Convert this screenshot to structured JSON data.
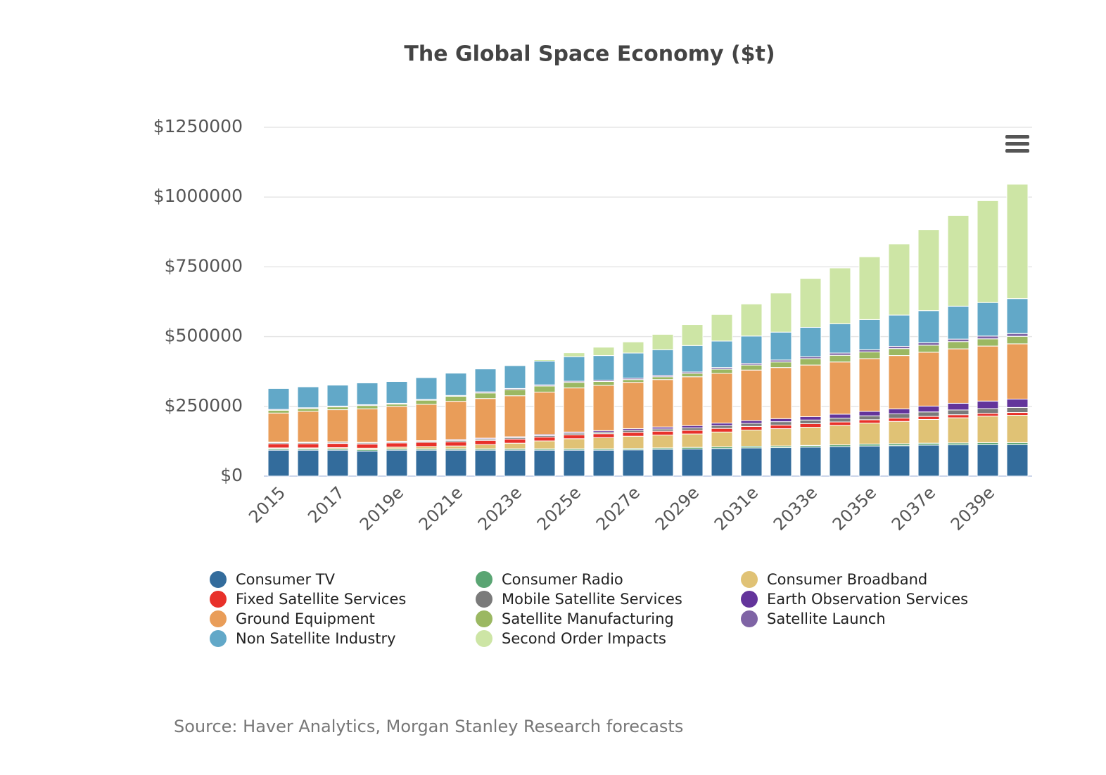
{
  "chart_data": {
    "type": "stacked-bar",
    "title": "The Global Space Economy ($t)",
    "source": "Source: Haver Analytics, Morgan Stanley Research forecasts",
    "categories": [
      "2015",
      null,
      "2017",
      null,
      "2019e",
      null,
      "2021e",
      null,
      "2023e",
      null,
      "2025e",
      null,
      "2027e",
      null,
      "2029e",
      null,
      "2031e",
      null,
      "2033e",
      null,
      "2035e",
      null,
      "2037e",
      null,
      "2039e",
      null
    ],
    "ylim": [
      0,
      1250000
    ],
    "yticks": [
      {
        "value": 0,
        "label": "$0"
      },
      {
        "value": 250000,
        "label": "$250000"
      },
      {
        "value": 500000,
        "label": "$500000"
      },
      {
        "value": 750000,
        "label": "$750000"
      },
      {
        "value": 1000000,
        "label": "$1000000"
      },
      {
        "value": 1250000,
        "label": "$1250000"
      }
    ],
    "grid": true,
    "legend": "bottom",
    "series": [
      {
        "name": "Consumer TV",
        "color": "#336c9c",
        "values": [
          93000,
          93000,
          93000,
          90000,
          93000,
          93000,
          93000,
          93000,
          93000,
          93000,
          93000,
          93000,
          94000,
          96000,
          97000,
          99000,
          101000,
          102000,
          104000,
          106000,
          108000,
          109000,
          111000,
          112000,
          113000,
          113000
        ]
      },
      {
        "name": "Consumer Radio",
        "color": "#5aa573",
        "values": [
          5000,
          5000,
          5000,
          5000,
          5000,
          5000,
          5000,
          5000,
          5000,
          5000,
          5000,
          5000,
          5000,
          5000,
          6000,
          6000,
          6000,
          6000,
          6000,
          6000,
          7000,
          7000,
          7000,
          7000,
          7000,
          7000
        ]
      },
      {
        "name": "Consumer Broadband",
        "color": "#e0c275",
        "values": [
          3000,
          3000,
          4000,
          5000,
          6000,
          8000,
          10000,
          15000,
          20000,
          28000,
          36000,
          40000,
          44000,
          46000,
          48000,
          53000,
          58000,
          62000,
          65000,
          70000,
          75000,
          80000,
          85000,
          90000,
          95000,
          98000
        ]
      },
      {
        "name": "Fixed Satellite Services",
        "color": "#e8312a",
        "values": [
          15000,
          15000,
          15000,
          15000,
          15000,
          15000,
          15000,
          15000,
          15000,
          14000,
          14000,
          14000,
          14000,
          14000,
          13000,
          13000,
          13000,
          13000,
          13000,
          12000,
          12000,
          12000,
          11000,
          11000,
          10000,
          10000
        ]
      },
      {
        "name": "Mobile Satellite Services",
        "color": "#7a7a7a",
        "values": [
          4000,
          4000,
          4000,
          4000,
          4000,
          4000,
          5000,
          5000,
          5000,
          5000,
          6000,
          6000,
          7000,
          8000,
          9000,
          10000,
          11000,
          12000,
          13000,
          14000,
          14000,
          15000,
          16000,
          17000,
          17000,
          18000
        ]
      },
      {
        "name": "Earth Observation Services",
        "color": "#63349b",
        "values": [
          2000,
          2000,
          2000,
          2000,
          2000,
          2000,
          3000,
          3000,
          3000,
          4000,
          4000,
          5000,
          6000,
          7000,
          8000,
          9000,
          10000,
          11000,
          12000,
          14000,
          16000,
          18000,
          21000,
          24000,
          27000,
          30000
        ]
      },
      {
        "name": "Ground Equipment",
        "color": "#e99d59",
        "values": [
          104000,
          110000,
          115000,
          120000,
          125000,
          130000,
          137000,
          142000,
          147000,
          152000,
          158000,
          162000,
          166000,
          170000,
          175000,
          178000,
          181000,
          183000,
          185000,
          187000,
          189000,
          191000,
          193000,
          195000,
          197000,
          198000
        ]
      },
      {
        "name": "Satellite Manufacturing",
        "color": "#9bb862",
        "values": [
          10000,
          10000,
          10000,
          12000,
          8000,
          15000,
          18000,
          20000,
          22000,
          22000,
          20000,
          14000,
          10000,
          10000,
          12000,
          15000,
          18000,
          20000,
          23000,
          24000,
          24000,
          25000,
          25000,
          26000,
          26000,
          27000
        ]
      },
      {
        "name": "Satellite Launch",
        "color": "#7f64a5",
        "values": [
          3000,
          3000,
          3000,
          3000,
          3000,
          3000,
          3000,
          4000,
          4000,
          4000,
          4000,
          5000,
          5000,
          5000,
          5000,
          6000,
          6000,
          7000,
          7000,
          8000,
          8000,
          8000,
          9000,
          9000,
          10000,
          10000
        ]
      },
      {
        "name": "Non Satellite Industry",
        "color": "#62a8c8",
        "values": [
          75000,
          75000,
          75000,
          78000,
          78000,
          78000,
          80000,
          82000,
          82000,
          85000,
          88000,
          88000,
          90000,
          92000,
          95000,
          95000,
          98000,
          100000,
          105000,
          105000,
          108000,
          112000,
          115000,
          118000,
          120000,
          125000
        ]
      },
      {
        "name": "Second Order Impacts",
        "color": "#cde5a5",
        "values": [
          0,
          0,
          0,
          0,
          0,
          0,
          0,
          0,
          0,
          5000,
          14000,
          30000,
          40000,
          55000,
          75000,
          95000,
          115000,
          140000,
          175000,
          200000,
          225000,
          255000,
          290000,
          325000,
          365000,
          410000
        ]
      }
    ]
  }
}
